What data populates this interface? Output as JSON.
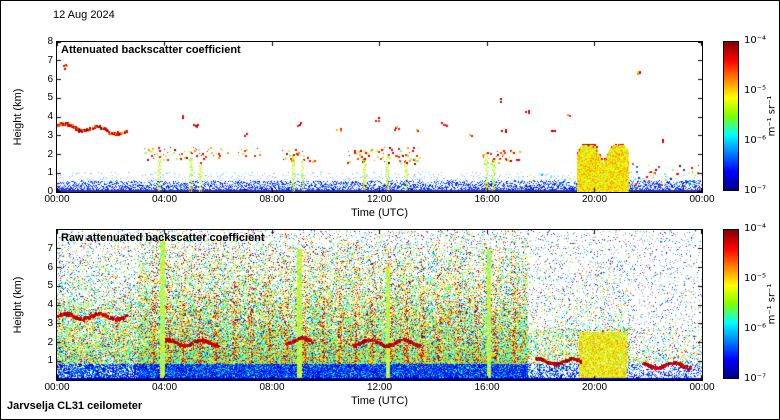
{
  "header": {
    "date": "12 Aug 2024"
  },
  "footer": {
    "instrument": "Jarvselja CL31 ceilometer"
  },
  "chart_data": [
    {
      "id": "processed",
      "type": "heatmap",
      "title": "Attenuated backscatter coefficient",
      "xlabel": "Time (UTC)",
      "ylabel": "Height (km)",
      "x_range_hours": [
        0,
        24
      ],
      "y_range_km": [
        0,
        8
      ],
      "xticks": [
        "00:00",
        "04:00",
        "08:00",
        "12:00",
        "16:00",
        "20:00",
        "00:00"
      ],
      "xtick_hours": [
        0,
        4,
        8,
        12,
        16,
        20,
        24
      ],
      "yticks": [
        0,
        1,
        2,
        3,
        4,
        5,
        6,
        7,
        8
      ],
      "colorbar": {
        "label": "m⁻¹ sr⁻¹",
        "ticks": [
          "10⁻⁴",
          "10⁻⁵",
          "10⁻⁶",
          "10⁻⁷"
        ],
        "scale": "log",
        "min": 1e-07,
        "max": 0.0001,
        "colormap": "jet",
        "colormap_stops": [
          "#800000",
          "#ff0000",
          "#ff8000",
          "#ffff00",
          "#80ff00",
          "#00ffff",
          "#0080ff",
          "#0000ff",
          "#000080"
        ]
      },
      "features": {
        "boundary_layer": {
          "hours": [
            0,
            24
          ],
          "top_km": 0.45,
          "haze_top_km": 0.8
        },
        "aerosol_track": {
          "hours": [
            0,
            2.6
          ],
          "km": [
            2.9,
            3.7
          ]
        },
        "cloud_clusters": [
          {
            "hours": [
              3.2,
              6.2
            ],
            "km": [
              1.7,
              2.4
            ],
            "density": 0.5,
            "palette": "warm"
          },
          {
            "hours": [
              6.3,
              7.6
            ],
            "km": [
              1.9,
              2.3
            ],
            "density": 0.25,
            "palette": "warm"
          },
          {
            "hours": [
              8.4,
              9.6
            ],
            "km": [
              1.6,
              2.3
            ],
            "density": 0.5,
            "palette": "warm"
          },
          {
            "hours": [
              10.8,
              13.6
            ],
            "km": [
              1.5,
              2.4
            ],
            "density": 0.55,
            "palette": "warm"
          },
          {
            "hours": [
              15.8,
              17.2
            ],
            "km": [
              1.5,
              2.2
            ],
            "density": 0.5,
            "palette": "warm"
          },
          {
            "hours": [
              17.6,
              19.1
            ],
            "km": [
              0.6,
              1.2
            ],
            "density": 0.15,
            "palette": "mixed"
          },
          {
            "hours": [
              21.4,
              24.0
            ],
            "km": [
              0.3,
              1.5
            ],
            "density": 0.45,
            "palette": "mixed"
          }
        ],
        "high_cloud_dots": [
          {
            "hour": 0.3,
            "km": 6.7
          },
          {
            "hour": 4.6,
            "km": 4.0
          },
          {
            "hour": 5.1,
            "km": 3.6
          },
          {
            "hour": 7.0,
            "km": 3.1
          },
          {
            "hour": 9.0,
            "km": 3.6
          },
          {
            "hour": 10.5,
            "km": 3.3
          },
          {
            "hour": 11.9,
            "km": 3.9
          },
          {
            "hour": 12.6,
            "km": 3.4
          },
          {
            "hour": 13.4,
            "km": 3.3
          },
          {
            "hour": 14.4,
            "km": 3.6
          },
          {
            "hour": 15.4,
            "km": 3.0
          },
          {
            "hour": 16.4,
            "km": 4.9
          },
          {
            "hour": 16.6,
            "km": 3.3
          },
          {
            "hour": 17.5,
            "km": 4.3
          },
          {
            "hour": 18.4,
            "km": 3.4
          },
          {
            "hour": 19.0,
            "km": 4.1
          },
          {
            "hour": 21.6,
            "km": 6.4
          },
          {
            "hour": 22.5,
            "km": 2.7
          }
        ],
        "precip_columns": [
          {
            "hour": 3.8,
            "top_km": 1.9
          },
          {
            "hour": 5.0,
            "top_km": 1.8
          },
          {
            "hour": 5.35,
            "top_km": 1.6
          },
          {
            "hour": 8.8,
            "top_km": 2.0
          },
          {
            "hour": 9.15,
            "top_km": 1.7
          },
          {
            "hour": 11.45,
            "top_km": 1.8
          },
          {
            "hour": 12.3,
            "top_km": 2.0
          },
          {
            "hour": 13.0,
            "top_km": 1.6
          },
          {
            "hour": 16.0,
            "top_km": 2.1
          },
          {
            "hour": 16.25,
            "top_km": 1.8
          }
        ],
        "dense_precip": {
          "hours": [
            19.35,
            21.25
          ],
          "top_km": 2.5
        }
      }
    },
    {
      "id": "raw",
      "type": "heatmap",
      "title": "Raw attenuated backscatter coefficient",
      "xlabel": "Time (UTC)",
      "ylabel": "Height (km)",
      "x_range_hours": [
        0,
        24
      ],
      "y_range_km": [
        0,
        8
      ],
      "xticks": [
        "00:00",
        "04:00",
        "08:00",
        "12:00",
        "16:00",
        "20:00",
        "00:00"
      ],
      "xtick_hours": [
        0,
        4,
        8,
        12,
        16,
        20,
        24
      ],
      "yticks": [
        1,
        2,
        3,
        4,
        5,
        6,
        7
      ],
      "colorbar": {
        "label": "m⁻¹ sr⁻¹",
        "ticks": [
          "10⁻⁴",
          "10⁻⁵",
          "10⁻⁶",
          "10⁻⁷"
        ],
        "scale": "log",
        "min": 1e-07,
        "max": 0.0001,
        "colormap": "jet",
        "colormap_stops": [
          "#800000",
          "#ff0000",
          "#ff8000",
          "#ffff00",
          "#80ff00",
          "#00ffff",
          "#0080ff",
          "#0000ff",
          "#000080"
        ]
      },
      "noise": {
        "dense_hours": [
          3,
          17.5
        ],
        "streak_hours": [
          3.6,
          4.15,
          4.7,
          5.3,
          5.9,
          6.6,
          7.2,
          7.9,
          8.5,
          9.2,
          9.9,
          10.5,
          11.1,
          11.7,
          12.4,
          13.0,
          13.6,
          14.2,
          14.9,
          15.6,
          16.3,
          17.0
        ],
        "green_columns": [
          {
            "hour": 3.9,
            "top_km": 7.5
          },
          {
            "hour": 9.0,
            "top_km": 7.0
          },
          {
            "hour": 12.3,
            "top_km": 6.0
          },
          {
            "hour": 16.05,
            "top_km": 7.0
          }
        ],
        "evening_precip": {
          "hours": [
            19.4,
            21.2
          ],
          "top_km": 2.6
        },
        "tracks": [
          {
            "hours": [
              0,
              2.6
            ],
            "km": 3.4
          },
          {
            "hours": [
              4.0,
              6.0
            ],
            "km": 2.0
          },
          {
            "hours": [
              8.5,
              9.5
            ],
            "km": 2.1
          },
          {
            "hours": [
              11.0,
              13.5
            ],
            "km": 2.0
          },
          {
            "hours": [
              17.8,
              19.5
            ],
            "km": 1.0
          },
          {
            "hours": [
              21.8,
              23.6
            ],
            "km": 0.8
          }
        ]
      }
    }
  ]
}
